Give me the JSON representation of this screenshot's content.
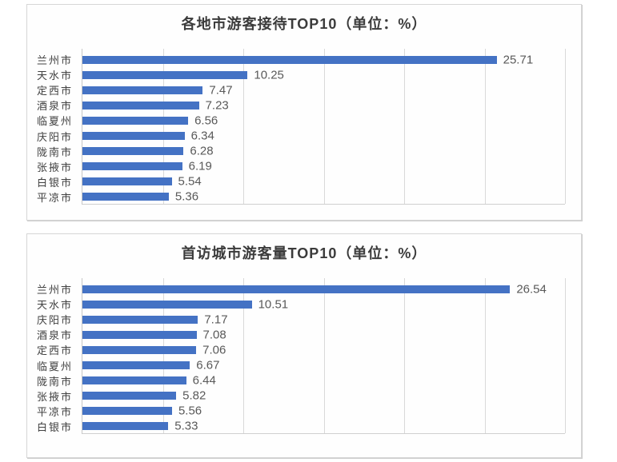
{
  "style": {
    "background": "#FFFFFF",
    "panel_background": "#FEFEFE",
    "panel_border_color": "#D6D6D6",
    "bar_color": "#4472C4",
    "gridline_color": "#D9D9D9",
    "axis_color": "#C6C6C6",
    "category_label_color": "#404040",
    "value_label_color": "#595959",
    "title_color": "#3B3B3B"
  },
  "chart_data": [
    {
      "type": "bar",
      "orientation": "horizontal",
      "title": "各地市游客接待TOP10（单位：%）",
      "categories": [
        "兰州市",
        "天水市",
        "定西市",
        "酒泉市",
        "临夏州",
        "庆阳市",
        "陇南市",
        "张掖市",
        "白银市",
        "平凉市"
      ],
      "values": [
        25.71,
        10.25,
        7.47,
        7.23,
        6.56,
        6.34,
        6.28,
        6.19,
        5.54,
        5.36
      ],
      "xlabel": "",
      "ylabel": "",
      "xlim": [
        0,
        30
      ],
      "gridline_interval": 5,
      "grid": true,
      "legend": false,
      "data_labels": "outside-end"
    },
    {
      "type": "bar",
      "orientation": "horizontal",
      "title": "首访城市游客量TOP10（单位：%）",
      "categories": [
        "兰州市",
        "天水市",
        "庆阳市",
        "酒泉市",
        "定西市",
        "临夏州",
        "陇南市",
        "张掖市",
        "平凉市",
        "白银市"
      ],
      "values": [
        26.54,
        10.51,
        7.17,
        7.08,
        7.06,
        6.67,
        6.44,
        5.82,
        5.56,
        5.33
      ],
      "xlabel": "",
      "ylabel": "",
      "xlim": [
        0,
        30
      ],
      "gridline_interval": 5,
      "grid": true,
      "legend": false,
      "data_labels": "outside-end"
    }
  ]
}
